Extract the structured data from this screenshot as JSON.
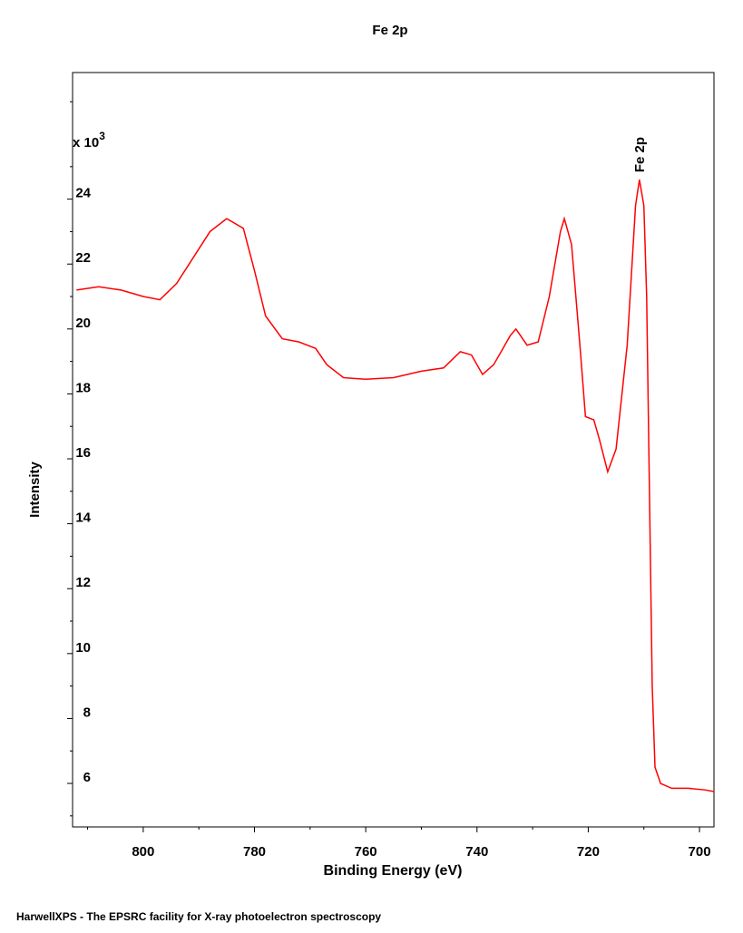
{
  "chart_data": {
    "type": "line",
    "title": "Fe 2p",
    "x_label": "Binding Energy (eV)",
    "y_label": "Intensity",
    "y_scale_label": "x 10",
    "y_scale_exponent": "3",
    "footer": "HarwellXPS - The EPSRC facility for X-ray photoelectron spectroscopy",
    "annotations": [
      {
        "text": "Fe 2p",
        "x": 710.8,
        "y": 24.6
      }
    ],
    "color": "#ff0000",
    "x": [
      812,
      808,
      804,
      800,
      797,
      794,
      791,
      788,
      785,
      782,
      780,
      778,
      775,
      772,
      769,
      767,
      764,
      760,
      755,
      750,
      746,
      743,
      741,
      739,
      737,
      734,
      733,
      731,
      729,
      727,
      725,
      724.3,
      723,
      721.5,
      720.5,
      719,
      718,
      716.5,
      715,
      713,
      711.5,
      710.8,
      710,
      709.5,
      709,
      708.5,
      708,
      707,
      705,
      702,
      699,
      697.4
    ],
    "values": [
      21.2,
      21.3,
      21.2,
      21.0,
      20.9,
      21.4,
      22.2,
      23.0,
      23.4,
      23.1,
      21.8,
      20.4,
      19.7,
      19.6,
      19.4,
      18.9,
      18.5,
      18.45,
      18.5,
      18.7,
      18.8,
      19.3,
      19.2,
      18.6,
      18.9,
      19.8,
      20.0,
      19.5,
      19.6,
      21.0,
      23.0,
      23.4,
      22.6,
      19.5,
      17.3,
      17.2,
      16.6,
      15.6,
      16.3,
      19.5,
      23.8,
      24.6,
      23.8,
      21,
      15,
      9,
      6.5,
      6.0,
      5.85,
      5.85,
      5.8,
      5.75
    ],
    "xlim": [
      812.7,
      697.4
    ],
    "ylim": [
      4.66,
      27.9
    ],
    "xticks": [
      800,
      780,
      760,
      740,
      720,
      700
    ],
    "yticks": [
      6,
      8,
      10,
      12,
      14,
      16,
      18,
      20,
      22,
      24
    ],
    "xminorticks": [
      810,
      790,
      770,
      750,
      730,
      710
    ],
    "yminorticks": [
      5,
      7,
      9,
      11,
      13,
      15,
      17,
      19,
      21,
      23,
      25,
      27
    ]
  }
}
